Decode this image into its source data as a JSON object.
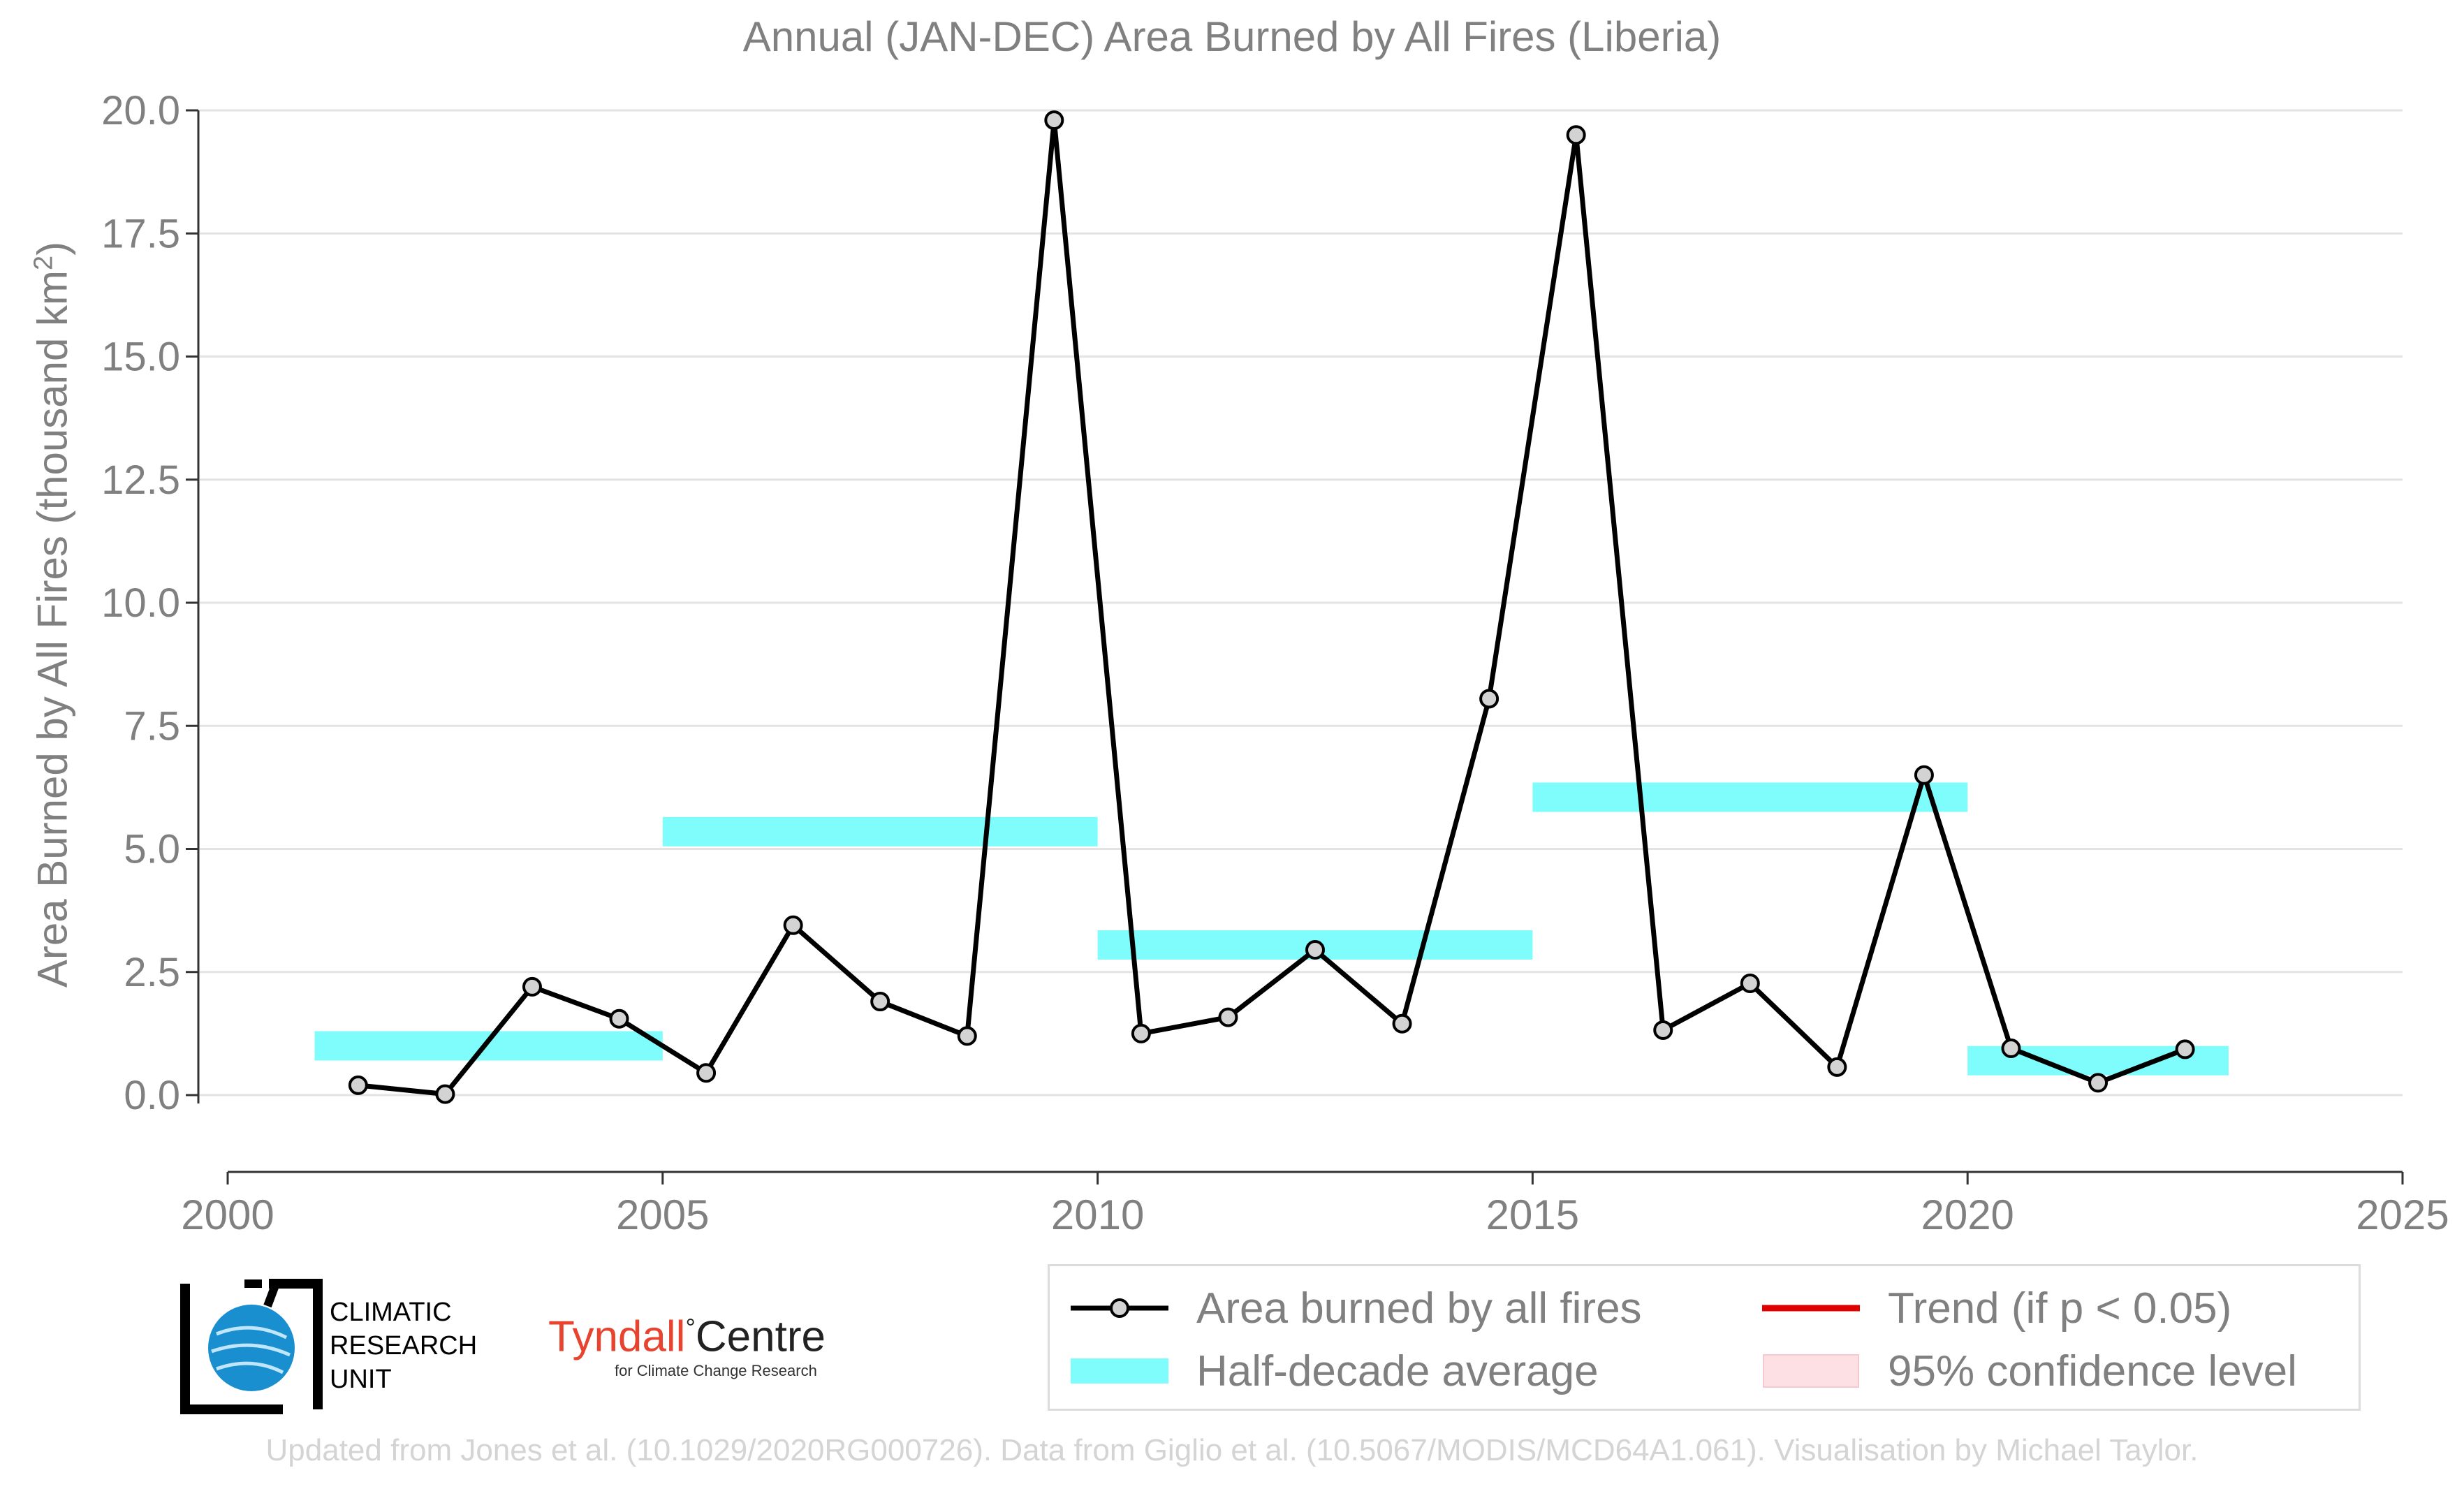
{
  "chart_data": {
    "type": "line",
    "title": "Annual (JAN-DEC) Area Burned by All Fires (Liberia)",
    "ylabel_main": "Area Burned by All Fires (thousand km",
    "ylabel_sup": "2",
    "ylabel_end": ")",
    "xlabel": "",
    "xlim": [
      2000,
      2025
    ],
    "ylim": [
      -1.5,
      20.5
    ],
    "x_ticks": [
      "2000",
      "2005",
      "2010",
      "2015",
      "2020",
      "2025"
    ],
    "x_tick_values": [
      2000,
      2005,
      2010,
      2015,
      2020,
      2025
    ],
    "y_ticks": [
      "0.0",
      "2.5",
      "5.0",
      "7.5",
      "10.0",
      "12.5",
      "15.0",
      "17.5",
      "20.0"
    ],
    "y_tick_values": [
      0,
      2.5,
      5,
      7.5,
      10,
      12.5,
      15,
      17.5,
      20
    ],
    "grid": "horizontal",
    "legend_position": "bottom-right",
    "series": [
      {
        "name": "Area burned by all fires",
        "color": "#000000",
        "marker_fill": "#d3d3d3",
        "x": [
          2001.5,
          2002.5,
          2003.5,
          2004.5,
          2005.5,
          2006.5,
          2007.5,
          2008.5,
          2009.5,
          2010.5,
          2011.5,
          2012.5,
          2013.5,
          2014.5,
          2015.5,
          2016.5,
          2017.5,
          2018.5,
          2019.5,
          2020.5,
          2021.5,
          2022.5
        ],
        "y": [
          0.2,
          0.02,
          2.2,
          1.55,
          0.45,
          3.45,
          1.9,
          1.2,
          19.8,
          1.25,
          1.58,
          2.95,
          1.45,
          8.05,
          19.5,
          1.32,
          2.27,
          0.57,
          6.5,
          0.95,
          0.25,
          0.93
        ]
      }
    ],
    "half_decade_average": {
      "name": "Half-decade average",
      "color": "#7ffcfc",
      "segments": [
        {
          "x0": 2001,
          "x1": 2005,
          "y": 1.0
        },
        {
          "x0": 2005,
          "x1": 2010,
          "y": 5.35
        },
        {
          "x0": 2010,
          "x1": 2015,
          "y": 3.05
        },
        {
          "x0": 2015,
          "x1": 2020,
          "y": 6.05
        },
        {
          "x0": 2020,
          "x1": 2023,
          "y": 0.7
        }
      ]
    },
    "legend": [
      {
        "label": "Area burned by all fires",
        "kind": "line-marker",
        "color": "#000000"
      },
      {
        "label": "Trend (if p < 0.05)",
        "kind": "line",
        "color": "#e00000"
      },
      {
        "label": "Half-decade average",
        "kind": "band",
        "color": "#7ffcfc"
      },
      {
        "label": "95% confidence level",
        "kind": "patch",
        "color": "#fde0e3"
      }
    ]
  },
  "logos": {
    "cru_lines": [
      "CLIMATIC",
      "RESEARCH",
      "UNIT"
    ],
    "tyndall_main": "Tyndall",
    "tyndall_degree": "°",
    "tyndall_centre": "Centre",
    "tyndall_sub": "for Climate Change Research"
  },
  "credit": "Updated from Jones et al. (10.1029/2020RG000726). Data from Giglio et al. (10.5067/MODIS/MCD64A1.061). Visualisation by Michael Taylor."
}
